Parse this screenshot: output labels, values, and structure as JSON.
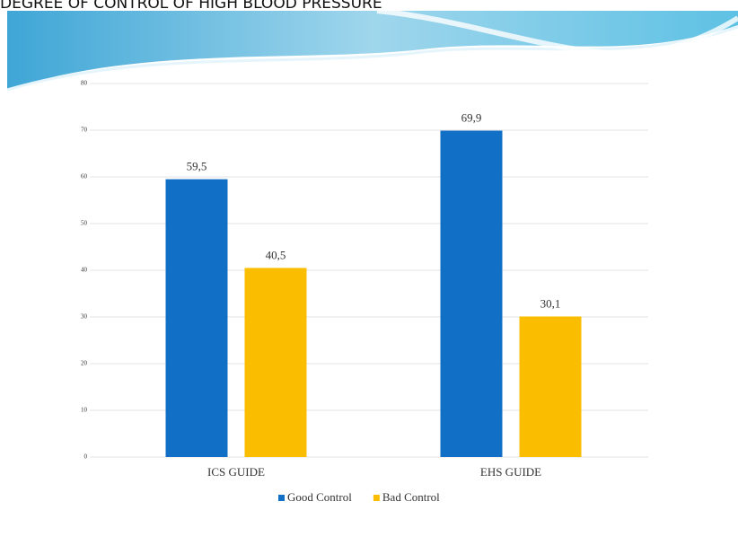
{
  "chart_data": {
    "type": "bar",
    "title": "DEGREE OF CONTROL OF HIGH BLOOD PRESSURE",
    "categories": [
      "ICS GUIDE",
      "EHS GUIDE"
    ],
    "series": [
      {
        "name": "Good Control",
        "color": "#1170c6",
        "values": [
          59.5,
          69.9
        ],
        "value_labels": [
          "59,5",
          "69,9"
        ]
      },
      {
        "name": "Bad Control",
        "color": "#fbbd00",
        "values": [
          40.5,
          30.1
        ],
        "value_labels": [
          "40,5",
          "30,1"
        ]
      }
    ],
    "ylim": [
      0,
      80
    ],
    "yticks": [
      0,
      10,
      20,
      30,
      40,
      50,
      60,
      70,
      80
    ],
    "grid": true,
    "legend": "bottom"
  }
}
